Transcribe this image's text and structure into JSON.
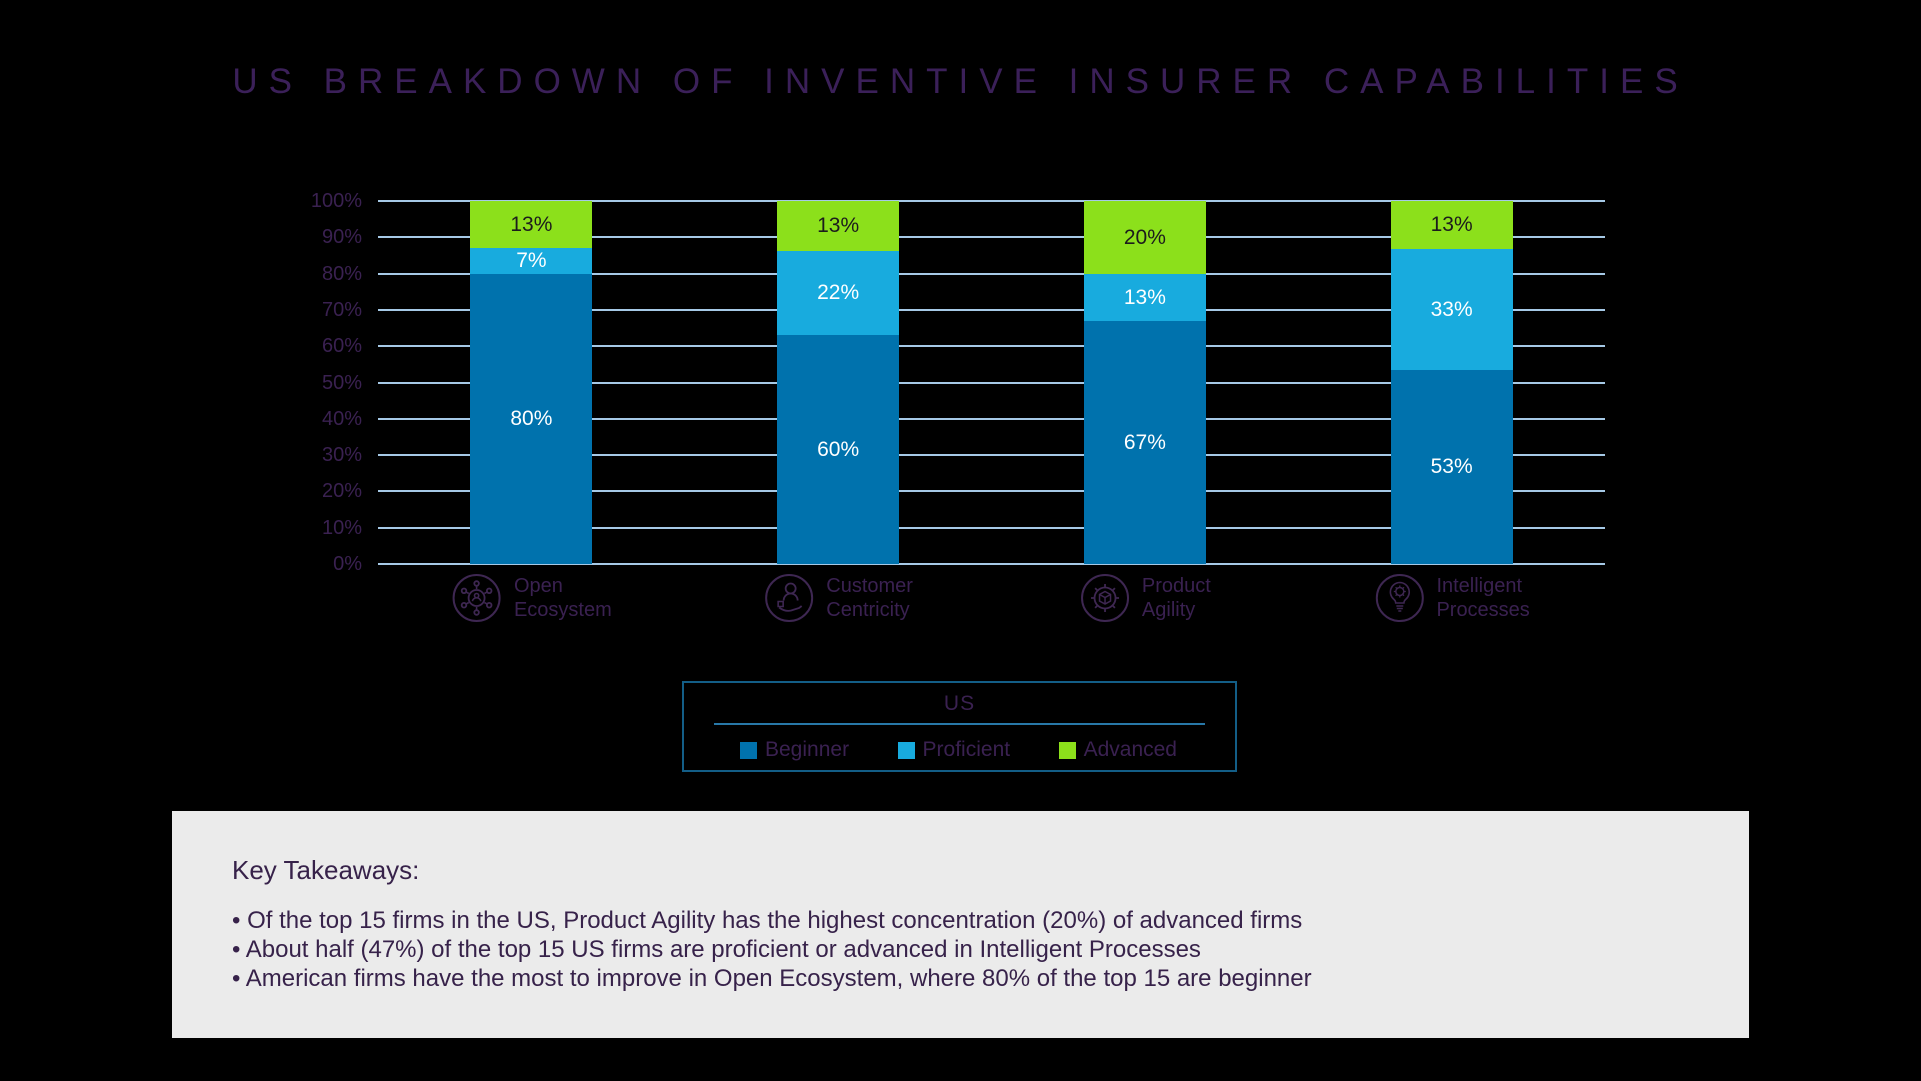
{
  "title": "US BREAKDOWN OF INVENTIVE INSURER CAPABILITIES",
  "colors": {
    "background": "#000000",
    "beginner": "#0072AD",
    "proficient": "#18ABDE",
    "advanced": "#8CE01B",
    "gridline": "#A6C9E6",
    "purple_text": "#3A2151",
    "title_text": "#3B2059",
    "icon_purple": "#3E2752",
    "legend_border": "#135E87",
    "legend_divider": "#2878A8",
    "takeaways_bg": "#EBEBEB",
    "takeaways_text": "#37224A",
    "label_on_green": "#1C1C1C",
    "label_on_blue": "#FFFFFF"
  },
  "chart_data": {
    "type": "bar",
    "stacked": true,
    "normalized_100_percent": true,
    "title": "US BREAKDOWN OF INVENTIVE INSURER CAPABILITIES",
    "categories": [
      "Open Ecosystem",
      "Customer Centricity",
      "Product Agility",
      "Intelligent Processes"
    ],
    "category_icons": [
      "network-people-icon",
      "customer-care-icon",
      "gear-cube-icon",
      "lightbulb-gear-icon"
    ],
    "series": [
      {
        "name": "Beginner",
        "color_key": "beginner",
        "values": [
          80,
          60,
          67,
          53
        ]
      },
      {
        "name": "Proficient",
        "color_key": "proficient",
        "values": [
          7,
          22,
          13,
          33
        ]
      },
      {
        "name": "Advanced",
        "color_key": "advanced",
        "values": [
          13,
          13,
          20,
          13
        ]
      }
    ],
    "value_suffix": "%",
    "y_ticks": [
      "100%",
      "90%",
      "80%",
      "70%",
      "60%",
      "50%",
      "40%",
      "30%",
      "20%",
      "10%",
      "0%"
    ],
    "ylim": [
      0,
      100
    ],
    "grid": true,
    "legend_title": "US",
    "legend_position": "below"
  },
  "takeaways": {
    "heading": "Key Takeaways:",
    "bullet_char": "•",
    "bullets": [
      "Of the top 15 firms in the US, Product Agility has the highest concentration (20%) of advanced firms",
      "About half (47%) of the top 15 US firms are proficient or advanced in Intelligent Processes",
      "American firms have the most to improve in Open Ecosystem, where 80% of the top 15 are beginner"
    ]
  }
}
